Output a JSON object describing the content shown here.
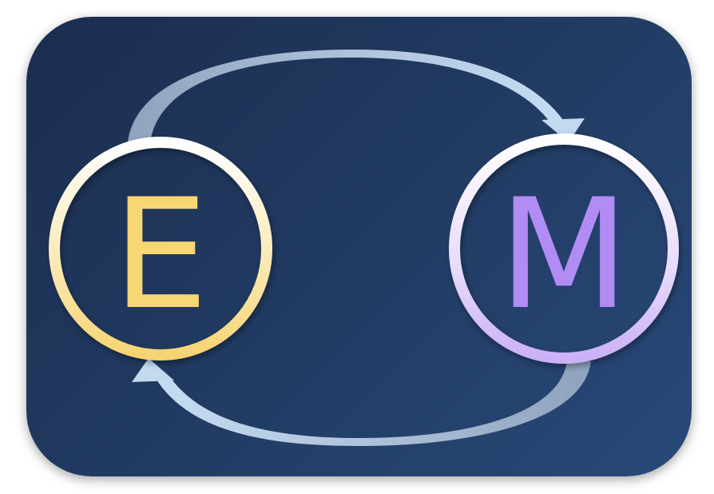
{
  "diagram": {
    "nodes": [
      {
        "id": "e",
        "label": "E",
        "color": "#f7d774"
      },
      {
        "id": "m",
        "label": "M",
        "color": "#b18cf4"
      }
    ],
    "edges": [
      {
        "from": "E",
        "to": "M"
      },
      {
        "from": "M",
        "to": "E"
      }
    ],
    "colors": {
      "background": "#223c64",
      "arrow": "#b5cde8"
    }
  }
}
